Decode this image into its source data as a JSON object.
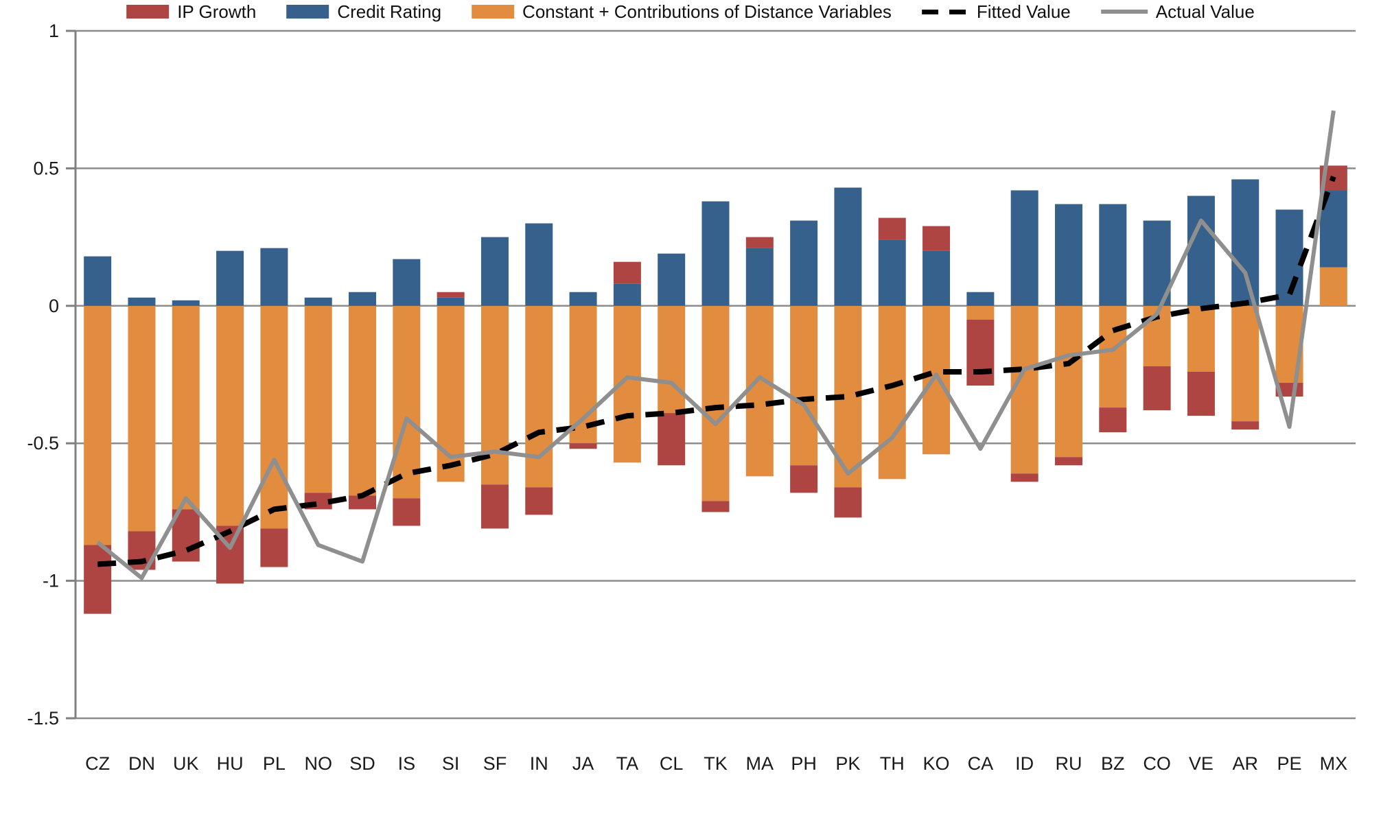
{
  "chart_data": {
    "type": "bar",
    "subtype": "stacked-bar-with-lines",
    "title": "",
    "xlabel": "",
    "ylabel": "",
    "grid": true,
    "legend_position": "top",
    "ylim": [
      -1.5,
      1
    ],
    "yticks": [
      {
        "value": 1,
        "label": "1"
      },
      {
        "value": 0.5,
        "label": "0.5"
      },
      {
        "value": 0,
        "label": "0"
      },
      {
        "value": -0.5,
        "label": "-0.5"
      },
      {
        "value": -1,
        "label": "-1"
      },
      {
        "value": -1.5,
        "label": "-1.5"
      }
    ],
    "categories": [
      "CZ",
      "DN",
      "UK",
      "HU",
      "PL",
      "NO",
      "SD",
      "IS",
      "SI",
      "SF",
      "IN",
      "JA",
      "TA",
      "CL",
      "TK",
      "MA",
      "PH",
      "PK",
      "TH",
      "KO",
      "CA",
      "ID",
      "RU",
      "BZ",
      "CO",
      "VE",
      "AR",
      "PE",
      "MX"
    ],
    "series": [
      {
        "id": "ip_growth",
        "label": "IP Growth",
        "type": "bar",
        "color": "#AE4543",
        "values": [
          -0.25,
          -0.14,
          -0.19,
          -0.21,
          -0.14,
          -0.06,
          -0.05,
          -0.1,
          0.02,
          -0.16,
          -0.1,
          -0.02,
          0.08,
          -0.19,
          -0.04,
          0.04,
          -0.1,
          -0.11,
          0.08,
          0.09,
          -0.24,
          -0.03,
          -0.03,
          -0.09,
          -0.16,
          -0.16,
          -0.03,
          -0.05,
          0.09
        ]
      },
      {
        "id": "credit_rating",
        "label": "Credit Rating",
        "type": "bar",
        "color": "#36618C",
        "values": [
          0.18,
          0.03,
          0.02,
          0.2,
          0.21,
          0.03,
          0.05,
          0.17,
          0.03,
          0.25,
          0.3,
          0.05,
          0.08,
          0.19,
          0.38,
          0.21,
          0.31,
          0.43,
          0.24,
          0.2,
          0.05,
          0.42,
          0.37,
          0.37,
          0.31,
          0.4,
          0.46,
          0.35,
          0.28
        ]
      },
      {
        "id": "constant_distance",
        "label": "Constant + Contributions of Distance Variables",
        "type": "bar",
        "color": "#E18C3F",
        "values": [
          -0.87,
          -0.82,
          -0.74,
          -0.8,
          -0.81,
          -0.68,
          -0.69,
          -0.7,
          -0.64,
          -0.65,
          -0.66,
          -0.5,
          -0.57,
          -0.39,
          -0.71,
          -0.62,
          -0.58,
          -0.66,
          -0.63,
          -0.54,
          -0.05,
          -0.61,
          -0.55,
          -0.37,
          -0.22,
          -0.24,
          -0.42,
          -0.28,
          0.14
        ]
      },
      {
        "id": "fitted",
        "label": "Fitted Value",
        "type": "line",
        "style": "dashed",
        "color": "#000000",
        "values": [
          -0.94,
          -0.93,
          -0.89,
          -0.82,
          -0.74,
          -0.72,
          -0.69,
          -0.61,
          -0.58,
          -0.54,
          -0.46,
          -0.44,
          -0.4,
          -0.39,
          -0.37,
          -0.36,
          -0.34,
          -0.33,
          -0.29,
          -0.24,
          -0.24,
          -0.23,
          -0.21,
          -0.09,
          -0.04,
          -0.01,
          0.01,
          0.04,
          0.47
        ]
      },
      {
        "id": "actual",
        "label": "Actual Value",
        "type": "line",
        "style": "solid",
        "color": "#8F8F8F",
        "values": [
          -0.86,
          -0.99,
          -0.7,
          -0.88,
          -0.56,
          -0.87,
          -0.93,
          -0.41,
          -0.55,
          -0.53,
          -0.55,
          -0.41,
          -0.26,
          -0.28,
          -0.43,
          -0.26,
          -0.36,
          -0.61,
          -0.48,
          -0.25,
          -0.52,
          -0.23,
          -0.18,
          -0.16,
          -0.03,
          0.31,
          0.12,
          -0.44,
          0.71
        ]
      }
    ],
    "stack_order": [
      "constant_distance",
      "credit_rating",
      "ip_growth"
    ],
    "colors": {
      "gridline": "#8C8C8C",
      "axis": "#808080",
      "tick_text": "#1A1A1A"
    }
  },
  "layout_text": {}
}
